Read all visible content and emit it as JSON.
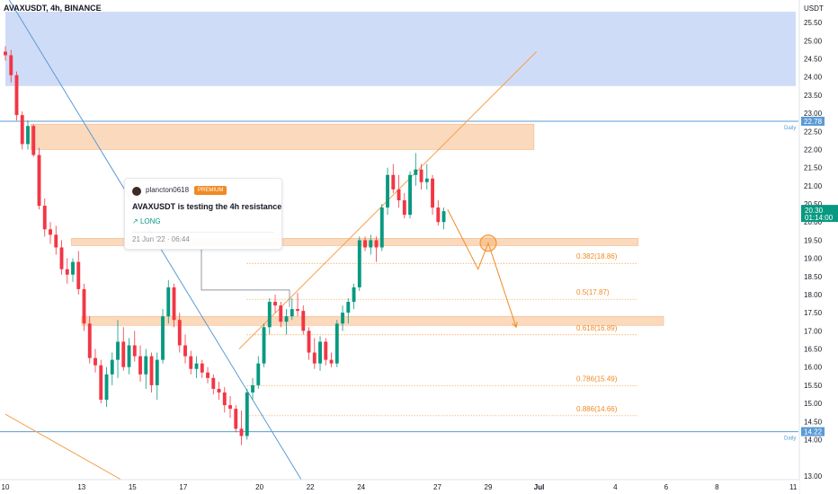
{
  "header": {
    "symbol": "AVAXUSDT, 4h, BINANCE"
  },
  "idea_card": {
    "author": "plancton0618",
    "badge": "PREMIUM",
    "title": "AVAXUSDT is testing the 4h resistance",
    "direction": "LONG",
    "direction_icon": "arrow-up-right-icon",
    "timestamp": "21 Jun '22 · 06:44"
  },
  "chart_data": {
    "type": "candlestick",
    "symbol": "AVAXUSDT",
    "timeframe": "4h",
    "exchange": "BINANCE",
    "y_axis_label": "USDT",
    "ylim": [
      12.5,
      26.0
    ],
    "y_ticks": [
      13.0,
      14.0,
      14.5,
      15.0,
      15.5,
      16.0,
      16.5,
      17.0,
      17.5,
      18.0,
      18.5,
      19.0,
      19.5,
      20.0,
      20.5,
      21.0,
      21.5,
      22.0,
      22.5,
      23.0,
      23.5,
      24.0,
      24.5,
      25.0,
      25.5
    ],
    "x_ticks": [
      {
        "label": "10",
        "day": 10
      },
      {
        "label": "13",
        "day": 13
      },
      {
        "label": "15",
        "day": 15
      },
      {
        "label": "17",
        "day": 17
      },
      {
        "label": "20",
        "day": 20
      },
      {
        "label": "22",
        "day": 22
      },
      {
        "label": "24",
        "day": 24
      },
      {
        "label": "27",
        "day": 27
      },
      {
        "label": "29",
        "day": 29
      },
      {
        "label": "Jul",
        "day": 31
      },
      {
        "label": "4",
        "day": 34
      },
      {
        "label": "6",
        "day": 36
      },
      {
        "label": "8",
        "day": 38
      },
      {
        "label": "11",
        "day": 41
      }
    ],
    "x_range_days": [
      10,
      41.1
    ],
    "last_price": {
      "value": "20.30",
      "countdown": "01:14:00",
      "price": 20.3
    },
    "daily_levels": [
      {
        "price": 22.78,
        "label": "22.78",
        "tag": "Daily"
      },
      {
        "price": 14.22,
        "label": "14.22",
        "tag": "Daily"
      }
    ],
    "zones": [
      {
        "name": "blue-supply",
        "from_day": 10,
        "to_day": 41.1,
        "low": 23.75,
        "high": 25.8,
        "color": "#cfdcf7"
      },
      {
        "name": "resistance",
        "from_day": 11.0,
        "to_day": 30.8,
        "low": 22.0,
        "high": 22.7,
        "color": "#fbd9bd"
      },
      {
        "name": "support-4h",
        "from_day": 12.6,
        "to_day": 34.9,
        "low": 19.35,
        "high": 19.55,
        "color": "#fbd9bd"
      },
      {
        "name": "support-lower",
        "from_day": 13.0,
        "to_day": 35.9,
        "low": 17.15,
        "high": 17.4,
        "color": "#fbd9bd"
      }
    ],
    "fib_levels": [
      {
        "ratio": "0.382",
        "price": 18.86,
        "label": "0.382(18.86)"
      },
      {
        "ratio": "0.5",
        "price": 17.87,
        "label": "0.5(17.87)"
      },
      {
        "ratio": "0.618",
        "price": 16.89,
        "label": "0.618(16.89)"
      },
      {
        "ratio": "0.786",
        "price": 15.49,
        "label": "0.786(15.49)"
      },
      {
        "ratio": "0.886",
        "price": 14.66,
        "label": "0.886(14.66)"
      }
    ],
    "trendlines": [
      {
        "name": "blue-downtrend",
        "color": "#5b9bd5",
        "points": [
          [
            10.0,
            26.3
          ],
          [
            21.9,
            12.6
          ]
        ]
      },
      {
        "name": "orange-uptrend",
        "color": "#f5a04a",
        "points": [
          [
            19.2,
            16.5
          ],
          [
            30.9,
            24.7
          ]
        ]
      },
      {
        "name": "orange-lower-trend",
        "color": "#f5a04a",
        "points": [
          [
            10.0,
            14.7
          ],
          [
            15.3,
            12.6
          ]
        ]
      }
    ],
    "projection": {
      "color": "#f08a24",
      "points": [
        [
          27.4,
          20.35
        ],
        [
          28.6,
          18.7
        ],
        [
          29.0,
          19.42
        ],
        [
          30.1,
          17.1
        ]
      ],
      "circle_at": [
        29.0,
        19.42
      ]
    },
    "candles": [
      [
        24.7,
        24.85,
        24.45,
        24.6
      ],
      [
        24.6,
        24.75,
        23.85,
        24.05
      ],
      [
        24.05,
        24.15,
        22.8,
        22.95
      ],
      [
        22.95,
        23.05,
        22.0,
        22.15
      ],
      [
        22.15,
        22.8,
        22.0,
        22.65
      ],
      [
        22.65,
        22.7,
        21.8,
        21.85
      ],
      [
        21.85,
        22.05,
        20.35,
        20.45
      ],
      [
        20.45,
        20.65,
        19.6,
        19.8
      ],
      [
        19.8,
        20.0,
        19.4,
        19.65
      ],
      [
        19.65,
        19.9,
        19.1,
        19.3
      ],
      [
        19.3,
        19.5,
        18.55,
        18.7
      ],
      [
        18.7,
        19.0,
        18.3,
        18.55
      ],
      [
        18.55,
        19.0,
        18.35,
        18.9
      ],
      [
        18.9,
        19.2,
        18.0,
        18.15
      ],
      [
        18.15,
        18.3,
        17.0,
        17.2
      ],
      [
        17.2,
        17.4,
        16.1,
        16.25
      ],
      [
        16.25,
        16.5,
        15.85,
        16.05
      ],
      [
        16.05,
        16.2,
        15.0,
        15.1
      ],
      [
        15.1,
        16.0,
        14.9,
        15.8
      ],
      [
        15.8,
        16.4,
        15.5,
        16.2
      ],
      [
        16.2,
        17.3,
        15.7,
        16.7
      ],
      [
        16.7,
        17.1,
        15.9,
        16.0
      ],
      [
        16.0,
        16.8,
        15.8,
        16.6
      ],
      [
        16.6,
        17.0,
        16.15,
        16.3
      ],
      [
        16.3,
        16.6,
        15.6,
        15.8
      ],
      [
        15.8,
        16.5,
        15.4,
        16.3
      ],
      [
        16.3,
        16.4,
        15.3,
        15.5
      ],
      [
        15.5,
        16.4,
        15.1,
        16.2
      ],
      [
        16.2,
        17.6,
        16.1,
        17.4
      ],
      [
        17.4,
        18.4,
        17.2,
        18.2
      ],
      [
        18.2,
        18.3,
        17.1,
        17.3
      ],
      [
        17.3,
        17.5,
        16.4,
        16.6
      ],
      [
        16.6,
        16.9,
        16.1,
        16.3
      ],
      [
        16.3,
        16.45,
        15.8,
        15.95
      ],
      [
        15.95,
        16.3,
        15.7,
        16.1
      ],
      [
        16.1,
        16.2,
        15.7,
        15.85
      ],
      [
        15.85,
        16.0,
        15.55,
        15.7
      ],
      [
        15.7,
        15.8,
        15.25,
        15.4
      ],
      [
        15.4,
        15.6,
        15.1,
        15.3
      ],
      [
        15.3,
        15.45,
        14.75,
        14.95
      ],
      [
        14.95,
        15.2,
        14.6,
        14.85
      ],
      [
        14.85,
        14.95,
        14.2,
        14.3
      ],
      [
        14.3,
        14.8,
        13.85,
        14.1
      ],
      [
        14.1,
        15.4,
        14.0,
        15.3
      ],
      [
        15.3,
        15.7,
        15.1,
        15.5
      ],
      [
        15.5,
        16.3,
        15.4,
        16.1
      ],
      [
        16.1,
        17.2,
        16.0,
        17.1
      ],
      [
        17.1,
        17.9,
        16.9,
        17.8
      ],
      [
        17.8,
        18.0,
        17.5,
        17.7
      ],
      [
        17.7,
        17.8,
        17.1,
        17.25
      ],
      [
        17.25,
        17.6,
        16.9,
        17.4
      ],
      [
        17.4,
        17.9,
        17.3,
        17.6
      ],
      [
        17.6,
        18.05,
        17.4,
        17.55
      ],
      [
        17.55,
        17.7,
        16.9,
        17.0
      ],
      [
        17.0,
        17.1,
        16.2,
        16.4
      ],
      [
        16.4,
        16.8,
        15.95,
        16.1
      ],
      [
        16.1,
        16.85,
        15.9,
        16.7
      ],
      [
        16.7,
        16.8,
        16.05,
        16.2
      ],
      [
        16.2,
        16.4,
        16.0,
        16.1
      ],
      [
        16.1,
        17.3,
        16.0,
        17.2
      ],
      [
        17.2,
        17.7,
        17.0,
        17.5
      ],
      [
        17.5,
        17.9,
        17.2,
        17.8
      ],
      [
        17.8,
        18.3,
        17.6,
        18.2
      ],
      [
        18.2,
        19.6,
        18.1,
        19.5
      ],
      [
        19.5,
        19.6,
        19.2,
        19.3
      ],
      [
        19.3,
        19.65,
        19.1,
        19.5
      ],
      [
        19.5,
        19.6,
        18.9,
        19.3
      ],
      [
        19.3,
        20.5,
        19.2,
        20.4
      ],
      [
        20.4,
        21.5,
        20.2,
        21.3
      ],
      [
        21.3,
        21.6,
        20.8,
        20.9
      ],
      [
        20.9,
        21.3,
        20.4,
        20.6
      ],
      [
        20.6,
        20.8,
        20.1,
        20.2
      ],
      [
        20.2,
        21.4,
        20.1,
        21.3
      ],
      [
        21.3,
        21.9,
        21.0,
        21.45
      ],
      [
        21.45,
        21.6,
        20.9,
        21.1
      ],
      [
        21.1,
        21.6,
        20.9,
        21.2
      ],
      [
        21.2,
        21.3,
        20.2,
        20.4
      ],
      [
        20.4,
        20.6,
        19.9,
        20.0
      ],
      [
        20.0,
        20.4,
        19.8,
        20.3
      ]
    ]
  }
}
